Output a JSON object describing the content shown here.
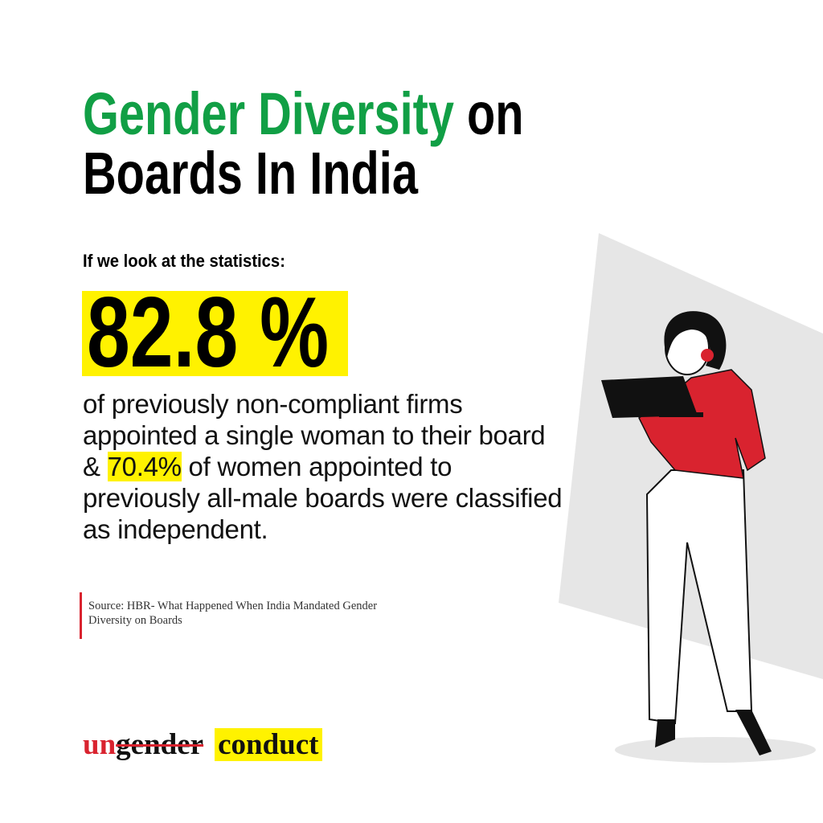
{
  "header": {
    "title_accent": "Gender Diversity",
    "title_rest": "on",
    "title_line2": "Boards In India"
  },
  "intro": "If we look at the statistics:",
  "stat": "82.8 %",
  "body": {
    "before": "of previously non-compliant firms appointed a single woman to their board &",
    "highlight": "70.4%",
    "after": "of women appointed to previously all-male boards were classified as independent."
  },
  "source": "Source: HBR- What Happened When India Mandated Gender Diversity on Boards",
  "logo": {
    "prefix": "un",
    "struck": "gender",
    "highlight": "conduct"
  }
}
